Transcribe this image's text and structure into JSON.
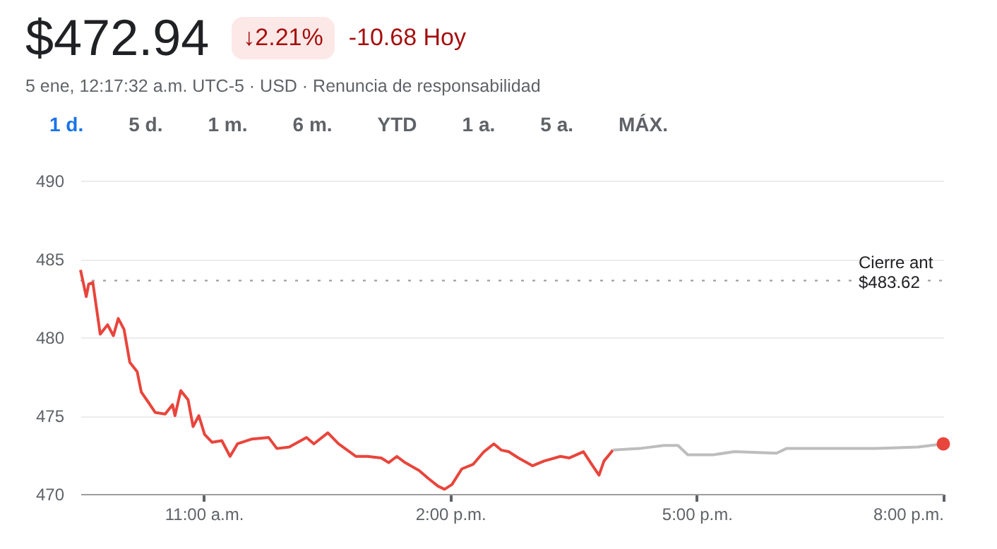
{
  "chart_data": {
    "type": "line",
    "title": "$472.94",
    "subtitle": "5 ene, 12:17:32 a.m. UTC-5 · USD · Renuncia de responsabilidad",
    "annotations": [
      "↓2.21%",
      "-10.68 Hoy",
      "1 d.",
      "5 d.",
      "1 m.",
      "6 m.",
      "YTD",
      "1 a.",
      "5 a.",
      "MÁX."
    ],
    "xlim": [
      9.5,
      20
    ],
    "xticks": [
      {
        "value": 11,
        "label": "11:00 a.m."
      },
      {
        "value": 14,
        "label": "2:00 p.m."
      },
      {
        "value": 17,
        "label": "5:00 p.m."
      },
      {
        "value": 20,
        "label": "8:00 p.m."
      }
    ],
    "ylim": [
      470,
      490
    ],
    "yticks": [
      470,
      475,
      480,
      485,
      490
    ],
    "grid": "y",
    "ref_lines": [
      {
        "axis": "y",
        "value": 483.62,
        "label": "Cierre ant\n$483.62",
        "color": "#9e9e9e",
        "line_style": "dotted"
      }
    ],
    "series": [
      {
        "color": "#e8453c",
        "x": [
          9.5,
          9.57,
          9.6,
          9.65,
          9.74,
          9.83,
          9.9,
          9.96,
          10.03,
          10.1,
          10.19,
          10.24,
          10.32,
          10.41,
          10.53,
          10.62,
          10.65,
          10.72,
          10.81,
          10.87,
          10.94,
          11.01,
          11.1,
          11.22,
          11.32,
          11.41,
          11.58,
          11.79,
          11.89,
          12.04,
          12.25,
          12.34,
          12.51,
          12.64,
          12.85,
          12.99,
          13.16,
          13.25,
          13.35,
          13.45,
          13.62,
          13.73,
          13.85,
          13.93,
          14.02,
          14.14,
          14.28,
          14.41,
          14.53,
          14.62,
          14.71,
          14.83,
          15.0,
          15.14,
          15.34,
          15.45,
          15.62,
          15.72,
          15.81,
          15.87,
          15.98
        ],
        "values": [
          484.3,
          482.6,
          483.4,
          483.5,
          480.2,
          480.8,
          480.1,
          481.2,
          480.5,
          478.4,
          477.8,
          476.5,
          475.9,
          475.2,
          475.1,
          475.7,
          475.0,
          476.6,
          476.0,
          474.3,
          475.0,
          473.8,
          473.3,
          473.4,
          472.4,
          473.2,
          473.5,
          473.6,
          472.9,
          473.0,
          473.6,
          473.2,
          473.9,
          473.2,
          472.4,
          472.4,
          472.3,
          472.0,
          472.4,
          472.0,
          471.5,
          471.0,
          470.5,
          470.3,
          470.6,
          471.6,
          471.9,
          472.7,
          473.2,
          472.8,
          472.7,
          472.3,
          471.8,
          472.1,
          472.4,
          472.3,
          472.7,
          471.9,
          471.2,
          472.1,
          472.8
        ]
      },
      {
        "color": "#bdbdbd",
        "x": [
          15.98,
          16.3,
          16.6,
          16.77,
          16.89,
          17.2,
          17.46,
          17.97,
          18.09,
          18.61,
          19.17,
          19.69,
          20
        ],
        "values": [
          472.8,
          472.9,
          473.1,
          473.1,
          472.5,
          472.5,
          472.7,
          472.6,
          472.9,
          472.9,
          472.9,
          473.0,
          473.2
        ]
      },
      {
        "type": "scatter",
        "color": "#e8453c",
        "x": [
          20
        ],
        "values": [
          473.2
        ]
      }
    ]
  }
}
